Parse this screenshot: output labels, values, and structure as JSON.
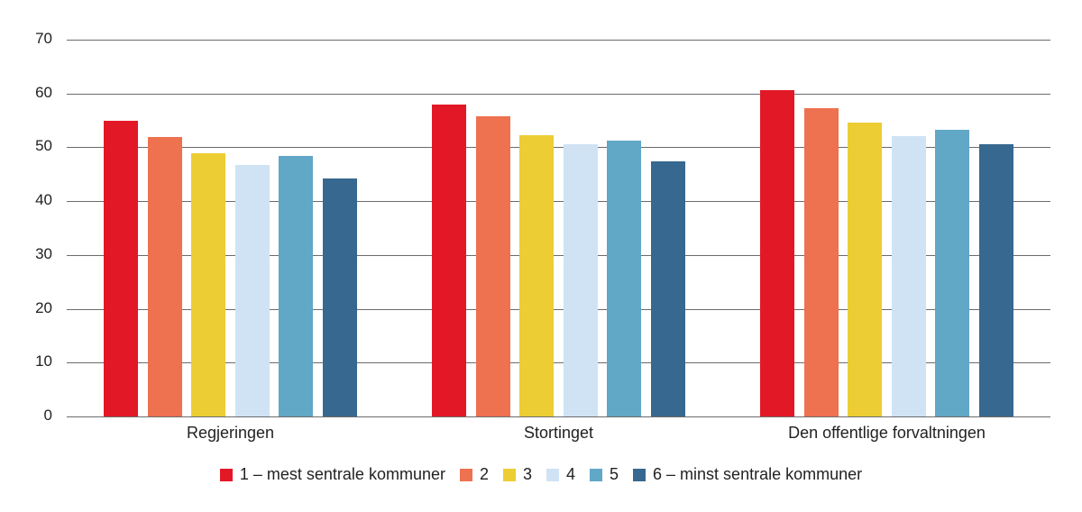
{
  "chart_data": {
    "type": "bar",
    "title": "",
    "xlabel": "",
    "ylabel": "",
    "ylim": [
      0,
      70
    ],
    "yticks": [
      0,
      10,
      20,
      30,
      40,
      50,
      60,
      70
    ],
    "grid": true,
    "legend_position": "bottom",
    "categories": [
      "Regjeringen",
      "Stortinget",
      "Den offentlige forvaltningen"
    ],
    "series": [
      {
        "name": "1 – mest sentrale kommuner",
        "color": "#e31826",
        "values": [
          54.9,
          58.0,
          60.6
        ]
      },
      {
        "name": "2",
        "color": "#ee7150",
        "values": [
          51.9,
          55.7,
          57.2
        ]
      },
      {
        "name": "3",
        "color": "#eccd34",
        "values": [
          48.9,
          52.3,
          54.6
        ]
      },
      {
        "name": "4",
        "color": "#cfe3f4",
        "values": [
          46.7,
          50.6,
          52.0
        ]
      },
      {
        "name": "5",
        "color": "#61a7c6",
        "values": [
          48.4,
          51.2,
          53.3
        ]
      },
      {
        "name": "6 – minst sentrale kommuner",
        "color": "#37688f",
        "values": [
          44.2,
          47.4,
          50.6
        ]
      }
    ]
  }
}
